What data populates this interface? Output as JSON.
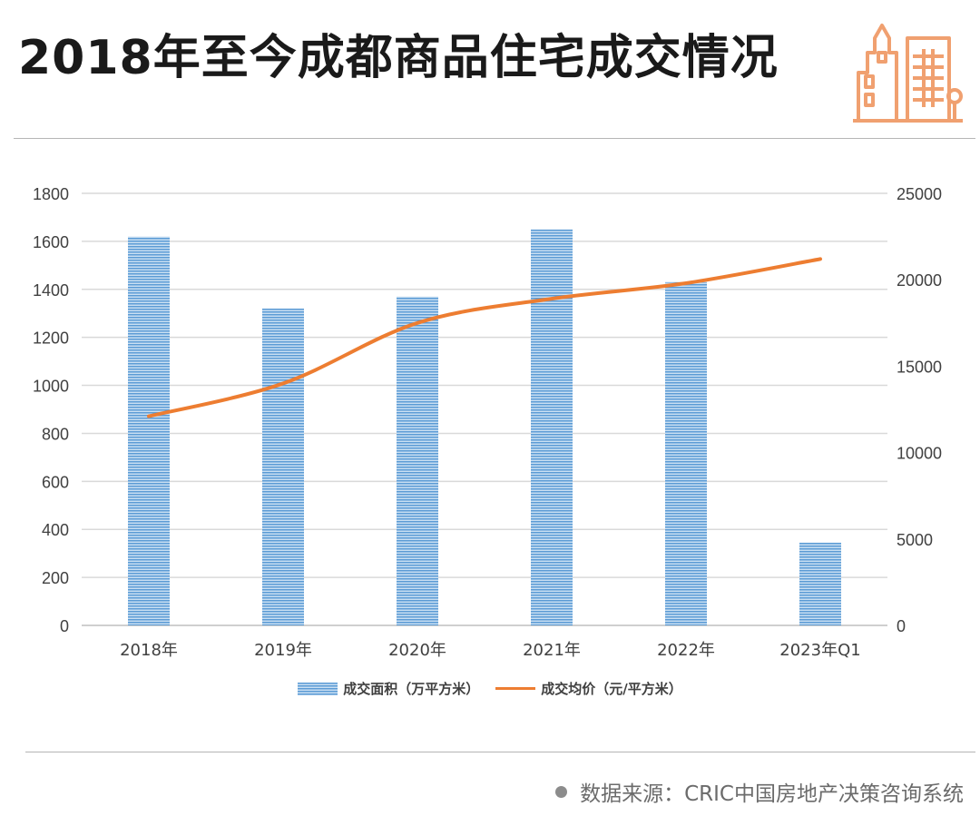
{
  "header": {
    "title": "2018年至今成都商品住宅成交情况",
    "icon": "buildings-icon",
    "icon_color": "#f0a070"
  },
  "source": {
    "text": "数据来源：CRIC中国房地产决策咨询系统"
  },
  "chart_data": {
    "type": "bar",
    "categories": [
      "2018年",
      "2019年",
      "2020年",
      "2021年",
      "2022年",
      "2023年Q1"
    ],
    "series": [
      {
        "name": "成交面积（万平方米）",
        "type": "bar",
        "axis": "left",
        "color": "#5b9bd5",
        "values": [
          1620,
          1320,
          1370,
          1650,
          1430,
          345
        ]
      },
      {
        "name": "成交均价（元/平方米）",
        "type": "line",
        "axis": "right",
        "color": "#ed7d31",
        "values": [
          12100,
          14000,
          17500,
          18900,
          19800,
          21200
        ]
      }
    ],
    "y_left": {
      "min": 0,
      "max": 1800,
      "ticks": [
        "0",
        "200",
        "400",
        "600",
        "800",
        "1000",
        "1200",
        "1400",
        "1600",
        "1800"
      ]
    },
    "y_right": {
      "min": 0,
      "max": 25000,
      "ticks": [
        "0",
        "5000",
        "10000",
        "15000",
        "20000",
        "25000"
      ]
    },
    "grid": true,
    "legend_position": "bottom"
  }
}
